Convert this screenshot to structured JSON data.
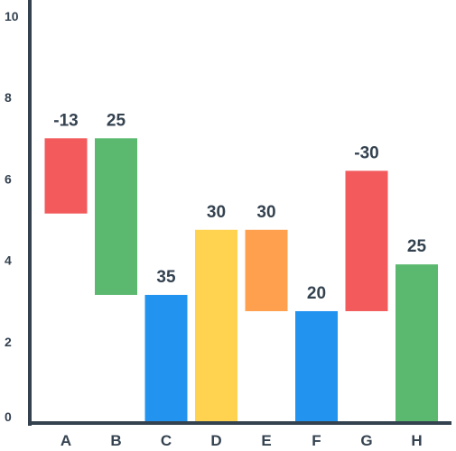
{
  "chart_data": {
    "type": "bar",
    "categories": [
      "A",
      "B",
      "C",
      "D",
      "E",
      "F",
      "G",
      "H"
    ],
    "ylim": [
      0,
      10
    ],
    "yticks": [
      0,
      2,
      4,
      6,
      8,
      10
    ],
    "grid": false,
    "title": "",
    "xlabel": "",
    "ylabel": "",
    "bars": [
      {
        "category": "A",
        "start": 5.15,
        "end": 7.0,
        "label": "-13",
        "color": "#f25a5c"
      },
      {
        "category": "B",
        "start": 3.15,
        "end": 7.0,
        "label": "25",
        "color": "#5bb86f"
      },
      {
        "category": "C",
        "start": 0.0,
        "end": 3.15,
        "label": "35",
        "color": "#2393f0"
      },
      {
        "category": "D",
        "start": 0.0,
        "end": 4.75,
        "label": "30",
        "color": "#ffd34f"
      },
      {
        "category": "E",
        "start": 2.75,
        "end": 4.75,
        "label": "30",
        "color": "#ffa04e"
      },
      {
        "category": "F",
        "start": 0.0,
        "end": 2.75,
        "label": "20",
        "color": "#2393f0"
      },
      {
        "category": "G",
        "start": 2.75,
        "end": 6.2,
        "label": "-30",
        "color": "#f25a5c"
      },
      {
        "category": "H",
        "start": 0.0,
        "end": 3.9,
        "label": "25",
        "color": "#5bb86f"
      }
    ],
    "axis_color": "#344250"
  }
}
